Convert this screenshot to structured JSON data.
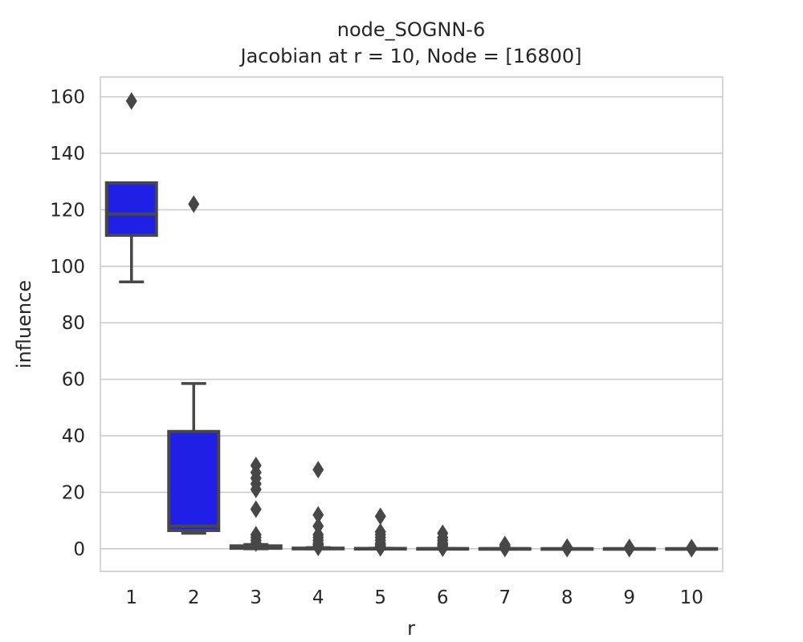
{
  "chart_data": {
    "type": "box",
    "title": "node_SOGNN-6",
    "subtitle": "Jacobian at r = 10, Node = [16800]",
    "xlabel": "r",
    "ylabel": "influence",
    "ylim": [
      -8,
      167
    ],
    "yticks": [
      0,
      20,
      40,
      60,
      80,
      100,
      120,
      140,
      160
    ],
    "grid": true,
    "box_color": "#1f1fe6",
    "line_color": "#474747",
    "categories": [
      "1",
      "2",
      "3",
      "4",
      "5",
      "6",
      "7",
      "8",
      "9",
      "10"
    ],
    "boxes": [
      {
        "category": "1",
        "whislo": 94.5,
        "q1": 111,
        "med": 118.5,
        "q3": 129.5,
        "whishi": 129.5,
        "fliers": [
          158.5
        ]
      },
      {
        "category": "2",
        "whislo": 5.5,
        "q1": 6.5,
        "med": 8,
        "q3": 41.5,
        "whishi": 58.5,
        "fliers": [
          122
        ]
      },
      {
        "category": "3",
        "whislo": 0,
        "q1": 0.2,
        "med": 0.5,
        "q3": 1.0,
        "whishi": 1.5,
        "fliers": [
          2,
          3,
          4,
          5,
          14,
          21,
          23,
          25,
          27,
          29.5
        ]
      },
      {
        "category": "4",
        "whislo": 0,
        "q1": 0,
        "med": 0.1,
        "q3": 0.2,
        "whishi": 0.4,
        "fliers": [
          0.5,
          1,
          1.5,
          2,
          3,
          4,
          5,
          8,
          12,
          28
        ]
      },
      {
        "category": "5",
        "whislo": 0,
        "q1": 0,
        "med": 0.05,
        "q3": 0.1,
        "whishi": 0.2,
        "fliers": [
          0.3,
          0.7,
          1,
          1.5,
          2,
          3,
          4,
          5,
          6,
          11.5
        ]
      },
      {
        "category": "6",
        "whislo": 0,
        "q1": 0,
        "med": 0.02,
        "q3": 0.05,
        "whishi": 0.1,
        "fliers": [
          0.2,
          0.5,
          1,
          1.5,
          2,
          3,
          4,
          5.5
        ]
      },
      {
        "category": "7",
        "whislo": 0,
        "q1": 0,
        "med": 0.01,
        "q3": 0.02,
        "whishi": 0.05,
        "fliers": [
          0.1,
          0.3,
          0.6,
          1,
          1.5
        ]
      },
      {
        "category": "8",
        "whislo": 0,
        "q1": 0,
        "med": 0,
        "q3": 0.01,
        "whishi": 0.02,
        "fliers": [
          0.05,
          0.1,
          0.3,
          0.6
        ]
      },
      {
        "category": "9",
        "whislo": 0,
        "q1": 0,
        "med": 0,
        "q3": 0.01,
        "whishi": 0.02,
        "fliers": [
          0.05,
          0.1,
          0.3,
          0.5
        ]
      },
      {
        "category": "10",
        "whislo": 0,
        "q1": 0,
        "med": 0,
        "q3": 0.005,
        "whishi": 0.01,
        "fliers": [
          0.02,
          0.1,
          0.2,
          0.4
        ]
      }
    ]
  }
}
